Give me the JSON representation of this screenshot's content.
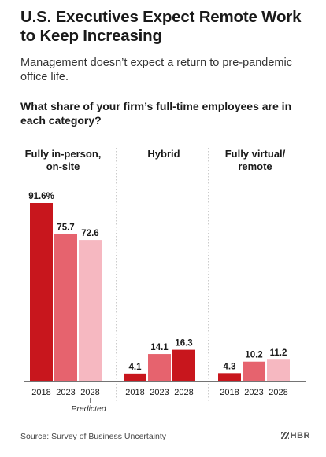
{
  "header": {
    "title": "U.S. Executives Expect Remote Work to Keep Increasing",
    "subtitle": "Management doesn’t expect a return to pre-pandemic office life.",
    "question": "What share of your firm’s full-time employees are in each category?"
  },
  "chart_data": {
    "type": "bar",
    "title": "What share of your firm’s full-time employees are in each category?",
    "groups": [
      {
        "name": "Fully in-person, on-site",
        "label_lines": [
          "Fully in-person,",
          "on-site"
        ]
      },
      {
        "name": "Hybrid",
        "label_lines": [
          "Hybrid"
        ]
      },
      {
        "name": "Fully virtual/ remote",
        "label_lines": [
          "Fully virtual/",
          "remote"
        ]
      }
    ],
    "categories": [
      "2018",
      "2023",
      "2028"
    ],
    "series": [
      {
        "category": "2018",
        "values": [
          91.6,
          4.1,
          4.3
        ],
        "labels": [
          "91.6%",
          "4.1",
          "4.3"
        ],
        "color": "#c8161d"
      },
      {
        "category": "2023",
        "values": [
          75.7,
          14.1,
          10.2
        ],
        "labels": [
          "75.7",
          "14.1",
          "10.2"
        ],
        "color": "#e6636e"
      },
      {
        "category": "2028",
        "values": [
          72.6,
          16.3,
          11.2
        ],
        "labels": [
          "72.6",
          "16.3",
          "11.2"
        ],
        "color": "#f6b8c1"
      }
    ],
    "hybrid_2028_color": "#c8161d",
    "annotation": "Predicted",
    "ylim": [
      0,
      100
    ],
    "grid": false
  },
  "footer": {
    "source": "Source: Survey of Business Uncertainty",
    "brand": "HBR"
  }
}
